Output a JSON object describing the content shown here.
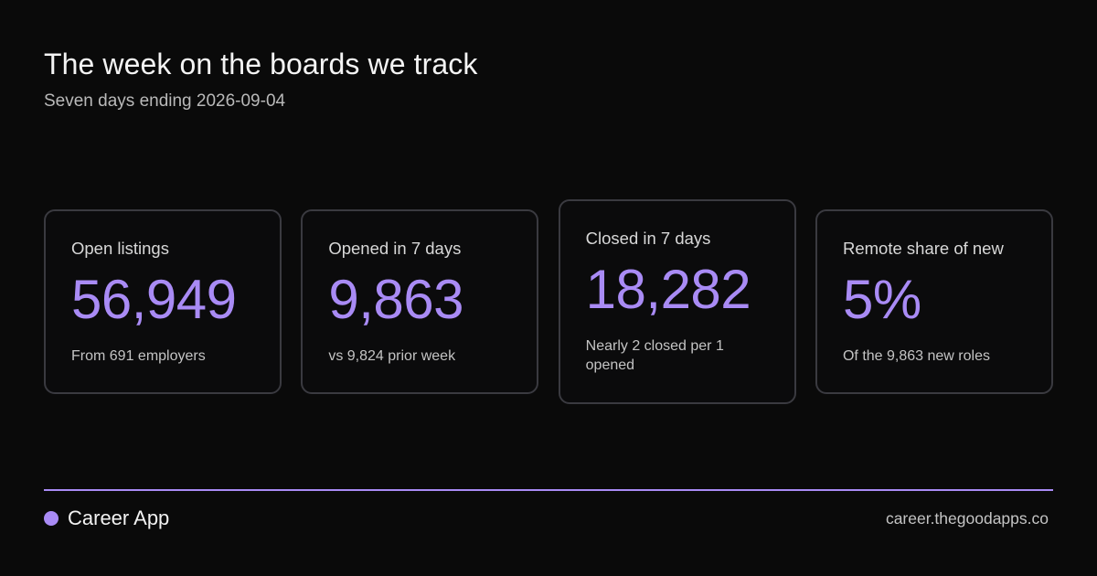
{
  "header": {
    "title": "The week on the boards we track",
    "subtitle": "Seven days ending 2026-09-04"
  },
  "cards": [
    {
      "label": "Open listings",
      "value": "56,949",
      "note": "From 691 employers"
    },
    {
      "label": "Opened in 7 days",
      "value": "9,863",
      "note": "vs 9,824 prior week"
    },
    {
      "label": "Closed in 7 days",
      "value": "18,282",
      "note": "Nearly 2 closed per 1 opened"
    },
    {
      "label": "Remote share of new",
      "value": "5%",
      "note": "Of the 9,863 new roles"
    }
  ],
  "footer": {
    "brand": "Career App",
    "site": "career.thegoodapps.co"
  },
  "colors": {
    "background": "#0a0a0a",
    "accent": "#a98bf5",
    "card_border": "#3a3a40"
  }
}
